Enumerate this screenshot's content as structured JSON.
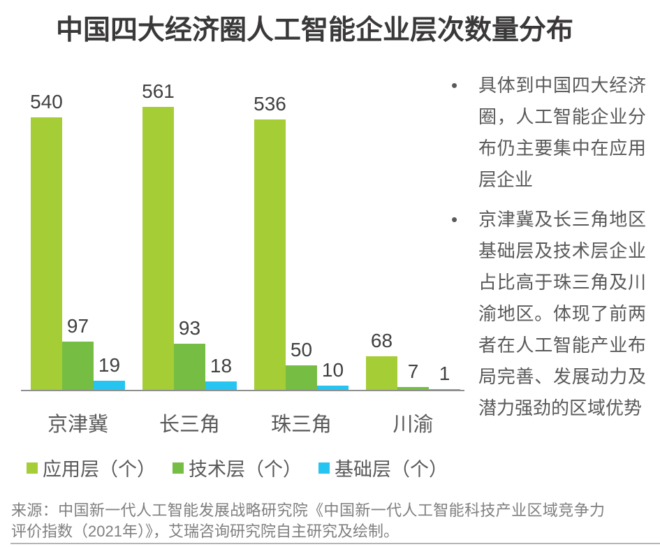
{
  "title": "中国四大经济圈人工智能企业层次数量分布",
  "chart_data": {
    "type": "bar",
    "categories": [
      "京津冀",
      "长三角",
      "珠三角",
      "川渝"
    ],
    "series": [
      {
        "name": "应用层（个）",
        "color": "#a5cd36",
        "values": [
          540,
          561,
          536,
          68
        ]
      },
      {
        "name": "技术层（个）",
        "color": "#76bd43",
        "values": [
          97,
          93,
          50,
          7
        ]
      },
      {
        "name": "基础层（个）",
        "color": "#26c4f0",
        "values": [
          19,
          18,
          10,
          1
        ]
      }
    ],
    "title": "中国四大经济圈人工智能企业层次数量分布",
    "xlabel": "",
    "ylabel": "",
    "ylim": [
      0,
      600
    ],
    "grid": false,
    "legend_position": "bottom",
    "value_labels": true,
    "axis_color": "#8f8f8f"
  },
  "insights": {
    "bullets": [
      "具体到中国四大经济圈，人工智能企业分布仍主要集中在应用层企业",
      "京津冀及长三角地区基础层及技术层企业占比高于珠三角及川渝地区。体现了前两者在人工智能产业布局完善、发展动力及潜力强劲的区域优势"
    ]
  },
  "source": "来源：中国新一代人工智能发展战略研究院《中国新一代人工智能科技产业区域竞争力评价指数（2021年）》，艾瑞咨询研究院自主研究及绘制。"
}
